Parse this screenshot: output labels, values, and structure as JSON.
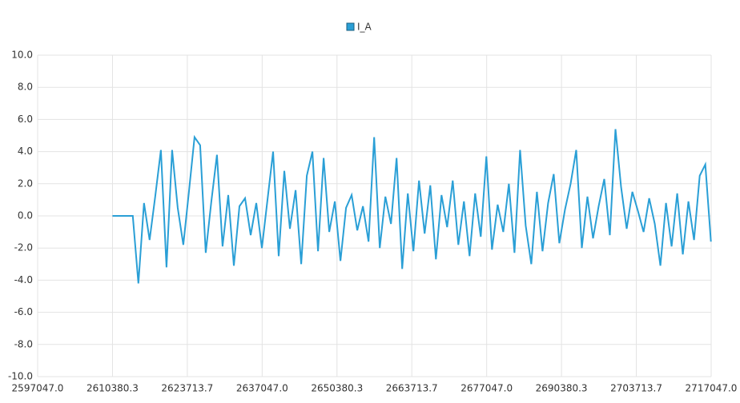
{
  "chart_data": {
    "type": "line",
    "x": [
      2610380.3,
      2614000,
      2615000,
      2616000,
      2617000,
      2618000,
      2619000,
      2620000,
      2621000,
      2622000,
      2623000,
      2624000,
      2625000,
      2626000,
      2627000,
      2628000,
      2629000,
      2630000,
      2631000,
      2632000,
      2633000,
      2634000,
      2635000,
      2636000,
      2637000,
      2638000,
      2639000,
      2640000,
      2641000,
      2642000,
      2643000,
      2644000,
      2645000,
      2646000,
      2647000,
      2648000,
      2649000,
      2650000,
      2651000,
      2652000,
      2653000,
      2654000,
      2655000,
      2656000,
      2657000,
      2658000,
      2659000,
      2660000,
      2661000,
      2662000,
      2663000,
      2664000,
      2665000,
      2666000,
      2667000,
      2668000,
      2669000,
      2670000,
      2671000,
      2672000,
      2673000,
      2674000,
      2675000,
      2676000,
      2677000,
      2678000,
      2679000,
      2680000,
      2681000,
      2682000,
      2683000,
      2684000,
      2685000,
      2686000,
      2687000,
      2688000,
      2689000,
      2690000,
      2691000,
      2692000,
      2693000,
      2694000,
      2695000,
      2696000,
      2697000,
      2698000,
      2699000,
      2700000,
      2701000,
      2702000,
      2703000,
      2704000,
      2705000,
      2706000,
      2707000,
      2708000,
      2709000,
      2710000,
      2711000,
      2712000,
      2713000,
      2714000,
      2715000,
      2716000,
      2717000
    ],
    "series": [
      {
        "name": "I_A",
        "color": "#2a9fd6",
        "values": [
          0,
          0,
          -4.2,
          0.8,
          -1.5,
          1.2,
          4.1,
          -3.2,
          4.1,
          0.5,
          -1.8,
          1.5,
          4.9,
          4.4,
          -2.3,
          0.9,
          3.8,
          -1.9,
          1.3,
          -3.1,
          0.6,
          1.1,
          -1.2,
          0.8,
          -2.0,
          1.0,
          4.0,
          -2.5,
          2.8,
          -0.8,
          1.6,
          -3.0,
          2.5,
          4.0,
          -2.2,
          3.6,
          -1.0,
          0.9,
          -2.8,
          0.5,
          1.3,
          -0.9,
          0.6,
          -1.6,
          4.9,
          -2.0,
          1.2,
          -0.5,
          3.6,
          -3.3,
          1.4,
          -2.2,
          2.2,
          -1.1,
          1.9,
          -2.7,
          1.3,
          -0.7,
          2.2,
          -1.8,
          0.9,
          -2.5,
          1.4,
          -1.3,
          3.7,
          -2.1,
          0.7,
          -1.0,
          2.0,
          -2.3,
          4.1,
          -0.6,
          -3.0,
          1.5,
          -2.2,
          0.8,
          2.6,
          -1.7,
          0.4,
          2.0,
          4.1,
          -2.0,
          1.2,
          -1.4,
          0.6,
          2.3,
          -1.2,
          5.4,
          1.8,
          -0.8,
          1.5,
          0.3,
          -1.0,
          1.1,
          -0.5,
          -3.1,
          0.8,
          -1.9,
          1.4,
          -2.4,
          0.9,
          -1.5,
          2.5,
          3.2,
          -1.6
        ]
      }
    ],
    "xlim": [
      2597047,
      2717047
    ],
    "xticks": [
      {
        "value": 2597047,
        "label": "2597047.0"
      },
      2610380.3,
      2623713.7,
      {
        "value": 2637047,
        "label": "2637047.0"
      },
      2650380.3,
      2663713.7,
      {
        "value": 2677047,
        "label": "2677047.0"
      },
      2690380.3,
      2703713.7,
      {
        "value": 2717047,
        "label": "2717047.0"
      }
    ],
    "ylim": [
      -10,
      10
    ],
    "yticks": [
      {
        "value": -10,
        "label": "-10.0"
      },
      {
        "value": -8,
        "label": "-8.0"
      },
      {
        "value": -6,
        "label": "-6.0"
      },
      {
        "value": -4,
        "label": "-4.0"
      },
      {
        "value": -2,
        "label": "-2.0"
      },
      {
        "value": 0,
        "label": "0.0"
      },
      {
        "value": 2,
        "label": "2.0"
      },
      {
        "value": 4,
        "label": "4.0"
      },
      {
        "value": 6,
        "label": "6.0"
      },
      {
        "value": 8,
        "label": "8.0"
      },
      {
        "value": 10,
        "label": "10.0"
      }
    ],
    "grid": true
  }
}
